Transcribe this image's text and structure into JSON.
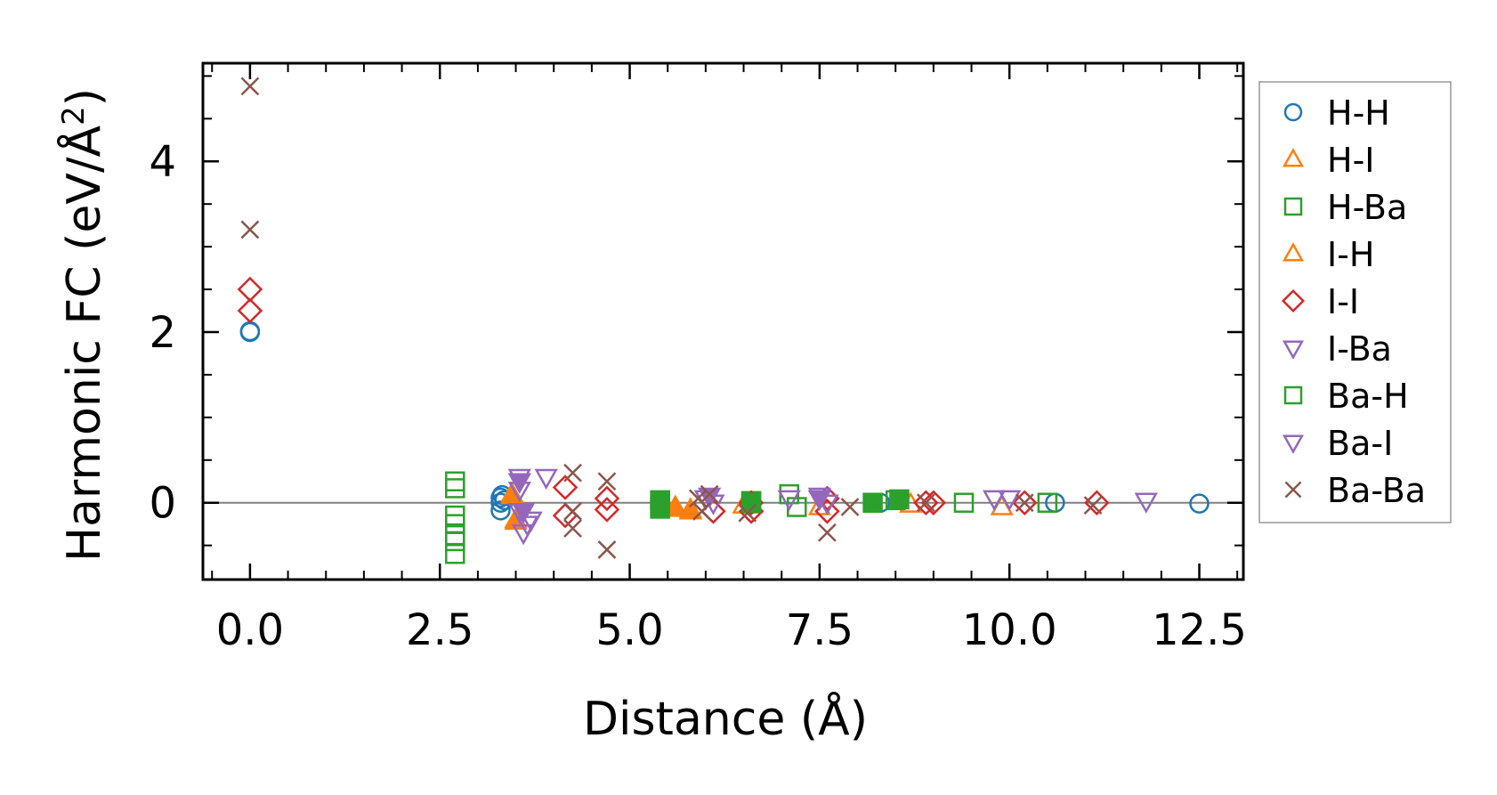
{
  "chart_data": {
    "type": "scatter",
    "title": "",
    "xlabel": "Distance (Å)",
    "ylabel_main": "Harmonic FC (eV/Å",
    "ylabel_sup": "2",
    "ylabel_close": ")",
    "xlim": [
      -0.62,
      13.08
    ],
    "ylim": [
      -0.9,
      5.15
    ],
    "xticks": [
      0,
      2.5,
      5.0,
      7.5,
      10.0,
      12.5
    ],
    "xtick_labels": [
      "0.0",
      "2.5",
      "5.0",
      "7.5",
      "10.0",
      "12.5"
    ],
    "yticks": [
      0,
      2,
      4
    ],
    "ytick_labels": [
      "0",
      "2",
      "4"
    ],
    "zero_line": 0,
    "grid": false,
    "legend_position": "outside-right",
    "series": [
      {
        "name": "H-H",
        "marker": "circle",
        "color": "#1f77b4",
        "filled": false,
        "points": [
          [
            0.0,
            2.01
          ],
          [
            0.0,
            2.0
          ],
          [
            3.3,
            0.06
          ],
          [
            3.3,
            0.0
          ],
          [
            3.3,
            -0.09
          ],
          [
            3.32,
            0.09
          ],
          [
            3.35,
            0.03
          ],
          [
            8.3,
            0.0
          ],
          [
            10.6,
            0.0
          ],
          [
            12.5,
            -0.01
          ]
        ]
      },
      {
        "name": "H-I",
        "marker": "triangle-up",
        "color": "#ff7f0e",
        "filled": false,
        "points": [
          [
            3.45,
            0.08
          ],
          [
            3.5,
            -0.2
          ],
          [
            5.6,
            -0.05
          ],
          [
            5.8,
            -0.08
          ],
          [
            6.5,
            -0.03
          ],
          [
            7.5,
            -0.05
          ],
          [
            8.7,
            -0.02
          ],
          [
            9.9,
            -0.05
          ]
        ]
      },
      {
        "name": "H-Ba",
        "marker": "square",
        "color": "#2ca02c",
        "filled": false,
        "points": [
          [
            2.7,
            0.25
          ],
          [
            2.7,
            0.17
          ],
          [
            2.7,
            -0.15
          ],
          [
            2.7,
            -0.25
          ],
          [
            2.7,
            -0.38
          ],
          [
            2.7,
            -0.45
          ],
          [
            2.7,
            -0.6
          ],
          [
            5.4,
            0.02
          ],
          [
            5.4,
            -0.07
          ],
          [
            6.6,
            0.02
          ],
          [
            7.1,
            0.1
          ],
          [
            7.2,
            -0.05
          ],
          [
            8.5,
            0.03
          ],
          [
            9.4,
            0.0
          ],
          [
            10.5,
            0.0
          ]
        ]
      },
      {
        "name": "I-H",
        "marker": "triangle-up",
        "color": "#ff7f0e",
        "filled": true,
        "points": [
          [
            3.45,
            0.1
          ],
          [
            3.5,
            -0.22
          ],
          [
            5.6,
            -0.07
          ],
          [
            5.8,
            -0.1
          ],
          [
            6.6,
            -0.03
          ]
        ]
      },
      {
        "name": "I-I",
        "marker": "diamond",
        "color": "#d62728",
        "filled": false,
        "points": [
          [
            0.0,
            2.5
          ],
          [
            0.0,
            2.25
          ],
          [
            4.15,
            0.18
          ],
          [
            4.15,
            -0.15
          ],
          [
            4.7,
            0.05
          ],
          [
            4.7,
            -0.08
          ],
          [
            6.1,
            -0.1
          ],
          [
            6.6,
            0.0
          ],
          [
            6.6,
            -0.1
          ],
          [
            7.6,
            0.05
          ],
          [
            7.6,
            -0.1
          ],
          [
            8.9,
            0.0
          ],
          [
            9.0,
            0.0
          ],
          [
            10.2,
            0.0
          ],
          [
            11.15,
            0.0
          ]
        ]
      },
      {
        "name": "I-Ba",
        "marker": "triangle-down",
        "color": "#9467bd",
        "filled": false,
        "points": [
          [
            3.55,
            0.3
          ],
          [
            3.55,
            0.15
          ],
          [
            3.55,
            -0.1
          ],
          [
            3.6,
            -0.35
          ],
          [
            3.65,
            -0.25
          ],
          [
            3.7,
            -0.2
          ],
          [
            3.9,
            0.3
          ],
          [
            6.0,
            0.05
          ],
          [
            6.1,
            0.0
          ],
          [
            7.1,
            0.05
          ],
          [
            7.5,
            0.08
          ],
          [
            7.6,
            0.0
          ],
          [
            9.8,
            0.05
          ],
          [
            10.0,
            0.05
          ],
          [
            11.8,
            0.02
          ]
        ]
      },
      {
        "name": "Ba-H",
        "marker": "square",
        "color": "#2ca02c",
        "filled": true,
        "points": [
          [
            5.4,
            0.03
          ],
          [
            5.4,
            -0.05
          ],
          [
            6.6,
            0.0
          ],
          [
            8.2,
            0.0
          ],
          [
            8.55,
            0.04
          ]
        ]
      },
      {
        "name": "Ba-I",
        "marker": "triangle-down",
        "color": "#9467bd",
        "filled": true,
        "points": [
          [
            3.55,
            0.25
          ],
          [
            3.6,
            -0.1
          ],
          [
            6.05,
            0.08
          ],
          [
            7.5,
            0.05
          ]
        ]
      },
      {
        "name": "Ba-Ba",
        "marker": "x",
        "color": "#8c564b",
        "filled": false,
        "points": [
          [
            0.0,
            4.88
          ],
          [
            0.0,
            3.2
          ],
          [
            4.25,
            0.35
          ],
          [
            4.25,
            -0.1
          ],
          [
            4.25,
            -0.3
          ],
          [
            4.7,
            0.25
          ],
          [
            4.7,
            -0.55
          ],
          [
            5.9,
            0.05
          ],
          [
            5.95,
            -0.1
          ],
          [
            6.05,
            0.1
          ],
          [
            6.55,
            -0.12
          ],
          [
            7.6,
            -0.35
          ],
          [
            7.9,
            -0.05
          ],
          [
            8.9,
            0.0
          ],
          [
            10.2,
            0.0
          ],
          [
            11.1,
            -0.03
          ]
        ]
      }
    ]
  }
}
